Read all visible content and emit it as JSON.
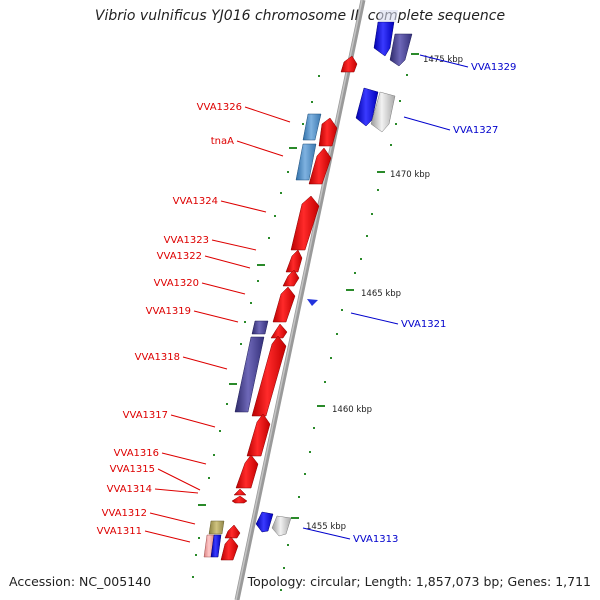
{
  "title": "Vibrio vulnificus YJ016 chromosome II, complete sequence",
  "footer": {
    "accession": "Accession: NC_005140",
    "summary": "Topology: circular; Length: 1,857,073 bp; Genes: 1,711"
  },
  "colors": {
    "forward_cds": "#ee1111",
    "reverse_cds": "#1a1aee",
    "other_cds": "#3d5fb8",
    "grey_cds": "#c8c8c8",
    "backbone": "#909090",
    "tick": "#2a8a2a",
    "label_forward": "#dd0000",
    "label_reverse": "#0000cc"
  },
  "scale_marks": [
    "1475 kbp",
    "1470 kbp",
    "1465 kbp",
    "1460 kbp",
    "1455 kbp"
  ],
  "gene_labels_left": [
    "VVA1326",
    "tnaA",
    "VVA1324",
    "VVA1323",
    "VVA1322",
    "VVA1320",
    "VVA1319",
    "VVA1318",
    "VVA1317",
    "VVA1316",
    "VVA1315",
    "VVA1314",
    "VVA1312",
    "VVA1311"
  ],
  "gene_labels_right": [
    "VVA1329",
    "VVA1327",
    "VVA1321",
    "VVA1313"
  ]
}
